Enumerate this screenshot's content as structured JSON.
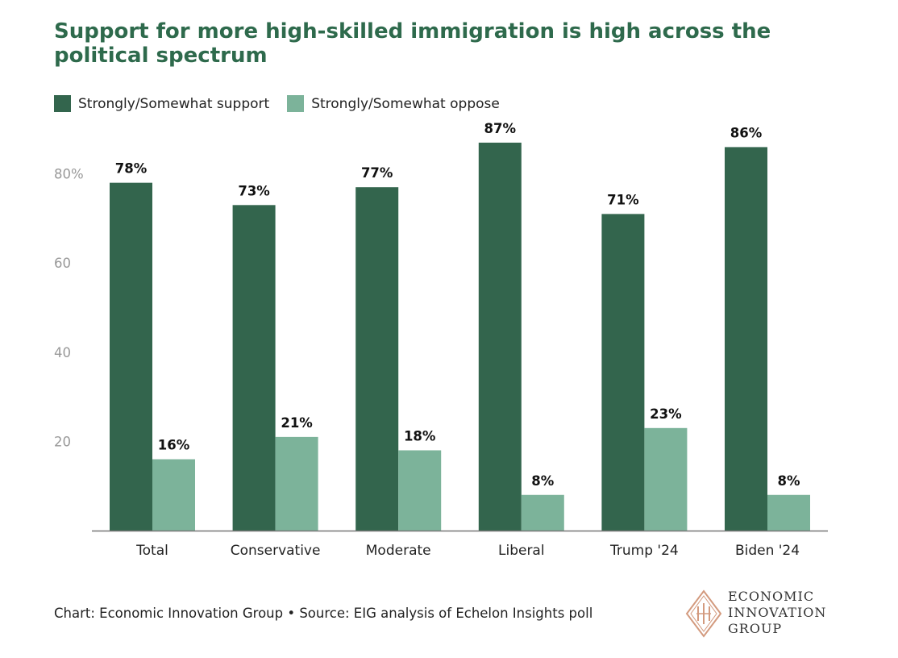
{
  "title": "Support for more high-skilled immigration is high across the political spectrum",
  "legend": {
    "support_label": "Strongly/Somewhat support",
    "oppose_label": "Strongly/Somewhat oppose"
  },
  "colors": {
    "support": "#33654d",
    "oppose": "#7cb39a",
    "title": "#2e6a4c",
    "axis_tick": "#999999",
    "logo": "#d39a7e"
  },
  "footer": "Chart: Economic Innovation Group • Source: EIG analysis of Echelon Insights poll",
  "logo": {
    "line1": "ECONOMIC",
    "line2": "INNOVATION",
    "line3": "GROUP",
    "icon": "diamond-monogram-icon"
  },
  "chart_data": {
    "type": "bar",
    "title": "Support for more high-skilled immigration is high across the political spectrum",
    "categories": [
      "Total",
      "Conservative",
      "Moderate",
      "Liberal",
      "Trump '24",
      "Biden '24"
    ],
    "series": [
      {
        "name": "Strongly/Somewhat support",
        "values": [
          78,
          73,
          77,
          87,
          71,
          86
        ],
        "labels": [
          "78%",
          "73%",
          "77%",
          "87%",
          "71%",
          "86%"
        ]
      },
      {
        "name": "Strongly/Somewhat oppose",
        "values": [
          16,
          21,
          18,
          8,
          23,
          8
        ],
        "labels": [
          "16%",
          "21%",
          "18%",
          "8%",
          "23%",
          "8%"
        ]
      }
    ],
    "yticks": [
      20,
      40,
      60,
      80
    ],
    "ytick_labels": [
      "20",
      "40",
      "60",
      "80%"
    ],
    "ylim": [
      0,
      90
    ],
    "xlabel": "",
    "ylabel": "",
    "grid": false,
    "legend_position": "top-left"
  }
}
